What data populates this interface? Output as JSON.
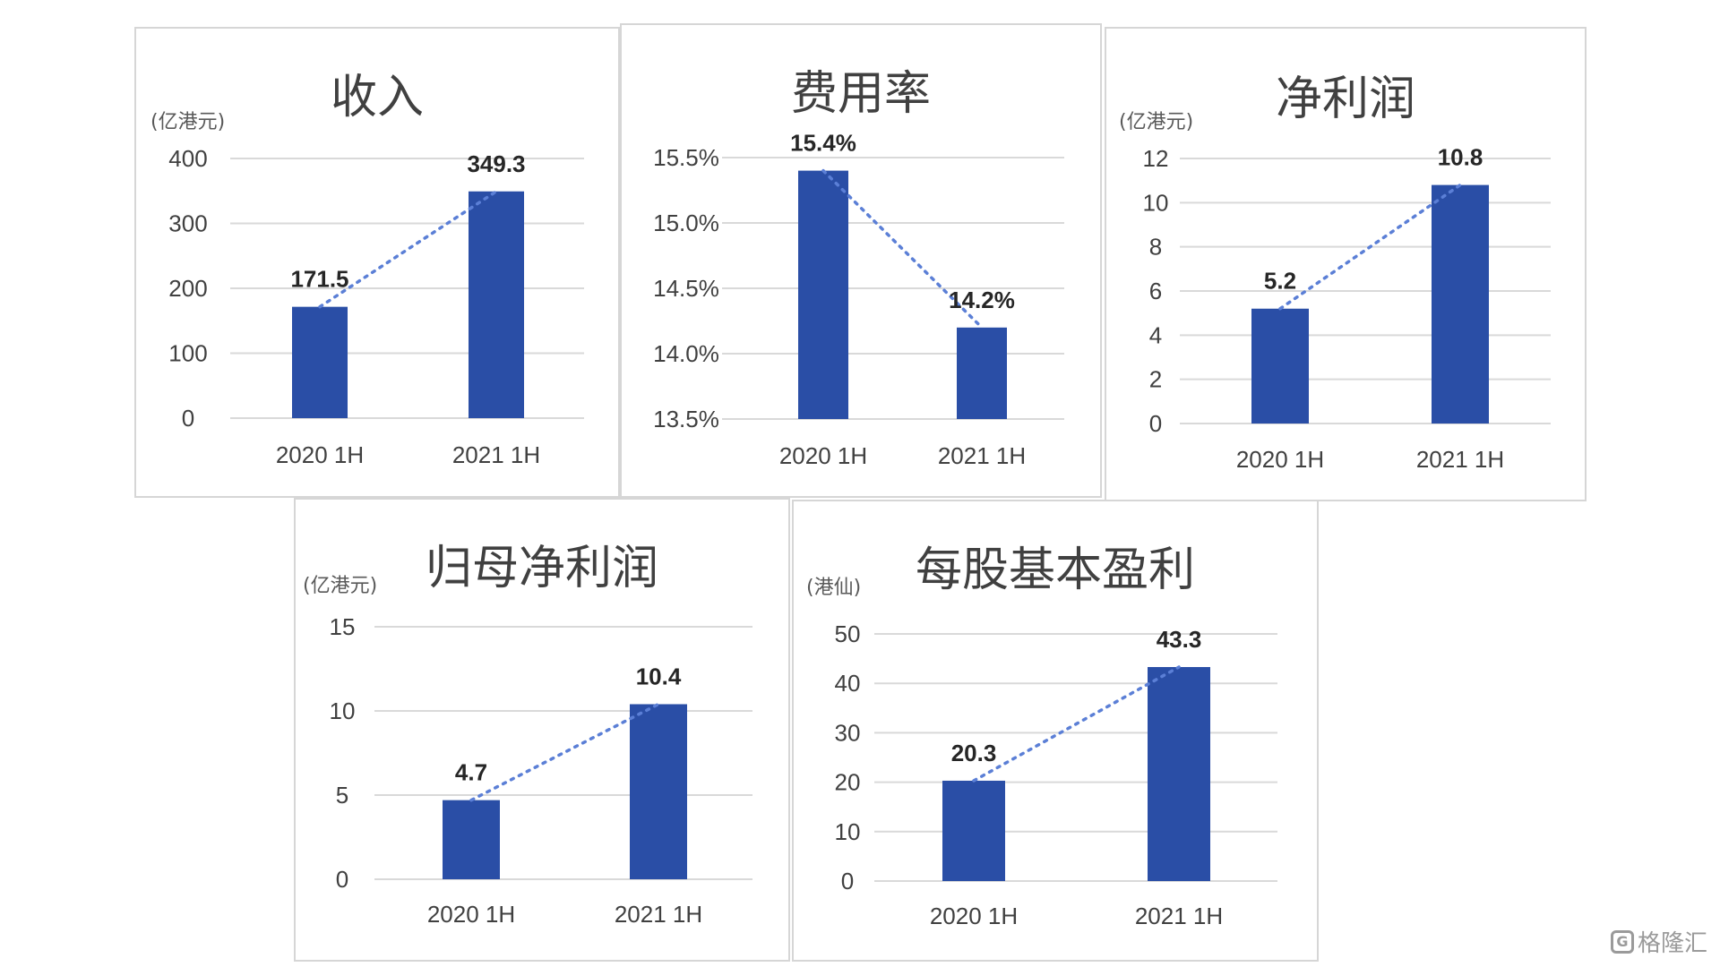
{
  "chart_data": [
    {
      "id": "revenue",
      "type": "bar",
      "title": "收入",
      "unit": "(亿港元)",
      "categories": [
        "2020 1H",
        "2021 1H"
      ],
      "values": [
        171.5,
        349.3
      ],
      "data_labels": [
        "171.5",
        "349.3"
      ],
      "yticks": [
        "0",
        "100",
        "200",
        "300",
        "400"
      ],
      "ylim": [
        0,
        400
      ],
      "trendline": true,
      "bar_color": "#2a4ea6",
      "grid": true
    },
    {
      "id": "expense-ratio",
      "type": "bar",
      "title": "费用率",
      "unit": "",
      "categories": [
        "2020 1H",
        "2021 1H"
      ],
      "values": [
        15.4,
        14.2
      ],
      "data_labels": [
        "15.4%",
        "14.2%"
      ],
      "yticks": [
        "13.5%",
        "14.0%",
        "14.5%",
        "15.0%",
        "15.5%"
      ],
      "ylim": [
        13.5,
        15.5
      ],
      "trendline": true,
      "bar_color": "#2a4ea6",
      "grid": true
    },
    {
      "id": "net-profit",
      "type": "bar",
      "title": "净利润",
      "unit": "(亿港元)",
      "categories": [
        "2020 1H",
        "2021 1H"
      ],
      "values": [
        5.2,
        10.8
      ],
      "data_labels": [
        "5.2",
        "10.8"
      ],
      "yticks": [
        "0",
        "2",
        "4",
        "6",
        "8",
        "10",
        "12"
      ],
      "ylim": [
        0,
        12
      ],
      "trendline": true,
      "bar_color": "#2a4ea6",
      "grid": true
    },
    {
      "id": "attributable-net-profit",
      "type": "bar",
      "title": "归母净利润",
      "unit": "(亿港元)",
      "categories": [
        "2020 1H",
        "2021 1H"
      ],
      "values": [
        4.7,
        10.4
      ],
      "data_labels": [
        "4.7",
        "10.4"
      ],
      "yticks": [
        "0",
        "5",
        "10",
        "15"
      ],
      "ylim": [
        0,
        15
      ],
      "trendline": true,
      "bar_color": "#2a4ea6",
      "grid": true
    },
    {
      "id": "basic-eps",
      "type": "bar",
      "title": "每股基本盈利",
      "unit": "(港仙)",
      "categories": [
        "2020 1H",
        "2021 1H"
      ],
      "values": [
        20.3,
        43.3
      ],
      "data_labels": [
        "20.3",
        "43.3"
      ],
      "yticks": [
        "0",
        "10",
        "20",
        "30",
        "40",
        "50"
      ],
      "ylim": [
        0,
        50
      ],
      "trendline": true,
      "bar_color": "#2a4ea6",
      "grid": true
    }
  ],
  "watermark": {
    "icon": "G",
    "text": "格隆汇"
  }
}
